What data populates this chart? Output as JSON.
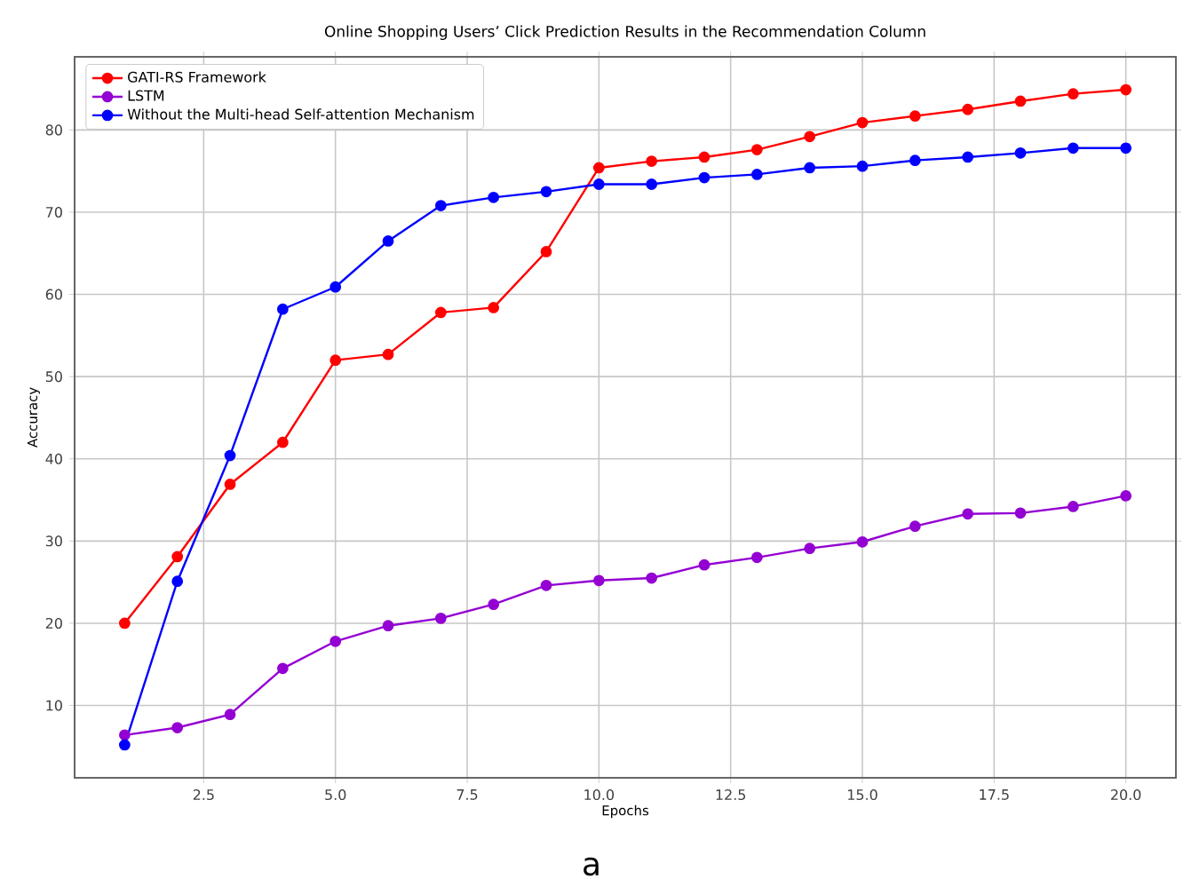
{
  "chart_data": {
    "type": "line",
    "title": "Online Shopping Users’ Click Prediction Results in the Recommendation Column",
    "xlabel": "Epochs",
    "ylabel": "Accuracy",
    "x": [
      1,
      2,
      3,
      4,
      5,
      6,
      7,
      8,
      9,
      10,
      11,
      12,
      13,
      14,
      15,
      16,
      17,
      18,
      19,
      20
    ],
    "series": [
      {
        "name": "GATI-RS Framework",
        "color": "#ff0000",
        "values": [
          20.0,
          28.1,
          36.9,
          42.0,
          52.0,
          52.7,
          57.8,
          58.4,
          65.2,
          75.4,
          76.2,
          76.7,
          77.6,
          79.2,
          80.9,
          81.7,
          82.5,
          83.5,
          84.4,
          84.9
        ]
      },
      {
        "name": "LSTM",
        "color": "#9400d3",
        "values": [
          6.4,
          7.3,
          8.9,
          14.5,
          17.8,
          19.7,
          20.6,
          22.3,
          24.6,
          25.2,
          25.5,
          27.1,
          28.0,
          29.1,
          29.9,
          31.8,
          33.3,
          33.4,
          34.2,
          35.5
        ]
      },
      {
        "name": "Without the Multi-head Self-attention Mechanism",
        "color": "#0000ff",
        "values": [
          5.2,
          25.1,
          40.4,
          58.2,
          60.9,
          66.5,
          70.8,
          71.8,
          72.5,
          73.4,
          73.4,
          74.2,
          74.6,
          75.4,
          75.6,
          76.3,
          76.7,
          77.2,
          77.8,
          77.8
        ]
      }
    ],
    "xlim": [
      0.05,
      20.95
    ],
    "ylim": [
      1.2,
      88.9
    ],
    "xticks": [
      2.5,
      {
        "value": 5,
        "label": "5.0"
      },
      7.5,
      {
        "value": 10,
        "label": "10.0"
      },
      12.5,
      {
        "value": 15,
        "label": "15.0"
      },
      17.5,
      {
        "value": 20,
        "label": "20.0"
      }
    ],
    "yticks": [
      10,
      20,
      30,
      40,
      50,
      60,
      70,
      80
    ],
    "grid": true,
    "legend": "top left",
    "marker": "circle",
    "line_style": "solid",
    "annotations": [
      "a"
    ]
  }
}
